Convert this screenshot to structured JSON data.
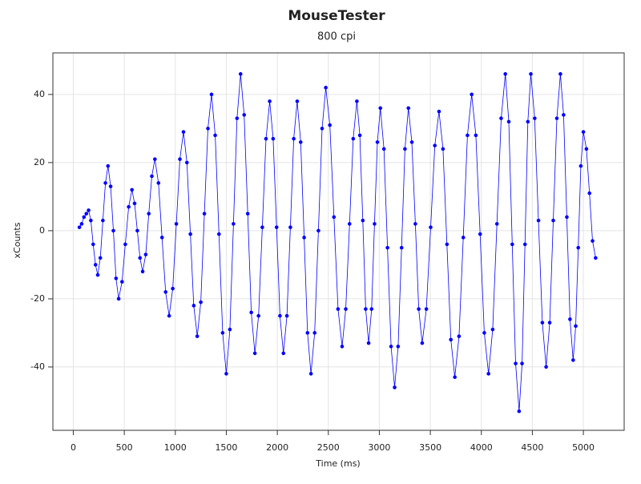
{
  "chart_data": {
    "type": "line",
    "title": "MouseTester",
    "subtitle": "800 cpi",
    "x_label": "Time (ms)",
    "y_label": "xCounts",
    "xlim": [
      -200,
      5400
    ],
    "ylim": [
      -58.6,
      52.2
    ],
    "xticks": [
      0,
      500,
      1000,
      1500,
      2000,
      2500,
      3000,
      3500,
      4000,
      4500,
      5000
    ],
    "yticks": [
      -40,
      -20,
      0,
      20,
      40
    ],
    "grid": true,
    "markers": true,
    "series": [
      {
        "name": "xCounts",
        "color": "#0000ff",
        "x": [
          60,
          82,
          105,
          128,
          150,
          172,
          195,
          218,
          240,
          265,
          290,
          315,
          340,
          366,
          393,
          419,
          445,
          478,
          510,
          543,
          575,
          601,
          628,
          654,
          680,
          710,
          740,
          770,
          800,
          835,
          870,
          905,
          940,
          975,
          1010,
          1045,
          1080,
          1114,
          1148,
          1181,
          1215,
          1250,
          1285,
          1320,
          1355,
          1391,
          1428,
          1464,
          1500,
          1535,
          1570,
          1605,
          1640,
          1675,
          1710,
          1745,
          1780,
          1816,
          1853,
          1889,
          1925,
          1959,
          1993,
          2026,
          2060,
          2094,
          2128,
          2161,
          2195,
          2229,
          2263,
          2296,
          2330,
          2366,
          2403,
          2439,
          2475,
          2515,
          2555,
          2595,
          2635,
          2671,
          2708,
          2744,
          2780,
          2809,
          2838,
          2866,
          2895,
          2924,
          2953,
          2981,
          3010,
          3045,
          3080,
          3115,
          3150,
          3184,
          3218,
          3251,
          3285,
          3319,
          3353,
          3386,
          3420,
          3461,
          3503,
          3544,
          3585,
          3624,
          3663,
          3701,
          3740,
          3781,
          3823,
          3864,
          3905,
          3946,
          3988,
          4029,
          4070,
          4111,
          4153,
          4194,
          4235,
          4269,
          4303,
          4336,
          4370,
          4399,
          4428,
          4456,
          4485,
          4523,
          4560,
          4598,
          4635,
          4670,
          4705,
          4740,
          4775,
          4806,
          4838,
          4869,
          4900,
          4925,
          4950,
          4975,
          5000,
          5030,
          5060,
          5090,
          5120
        ],
        "values": [
          1,
          2,
          4,
          5,
          6,
          3,
          -4,
          -10,
          -13,
          -8,
          3,
          14,
          19,
          13,
          0,
          -14,
          -20,
          -15,
          -4,
          7,
          12,
          8,
          0,
          -8,
          -12,
          -7,
          5,
          16,
          21,
          14,
          -2,
          -18,
          -25,
          -17,
          2,
          21,
          29,
          20,
          -1,
          -22,
          -31,
          -21,
          5,
          30,
          40,
          28,
          -1,
          -30,
          -42,
          -29,
          2,
          33,
          46,
          34,
          5,
          -24,
          -36,
          -25,
          1,
          27,
          38,
          27,
          1,
          -25,
          -36,
          -25,
          1,
          27,
          38,
          26,
          -2,
          -30,
          -42,
          -30,
          0,
          30,
          42,
          31,
          4,
          -23,
          -34,
          -23,
          2,
          27,
          38,
          28,
          3,
          -23,
          -33,
          -23,
          2,
          26,
          36,
          24,
          -5,
          -34,
          -46,
          -34,
          -5,
          24,
          36,
          26,
          2,
          -23,
          -33,
          -23,
          1,
          25,
          35,
          24,
          -4,
          -32,
          -43,
          -31,
          -2,
          28,
          40,
          28,
          -1,
          -30,
          -42,
          -29,
          2,
          33,
          46,
          32,
          -4,
          -39,
          -53,
          -39,
          -4,
          32,
          46,
          33,
          3,
          -27,
          -40,
          -27,
          3,
          33,
          46,
          34,
          4,
          -26,
          -38,
          -28,
          -5,
          19,
          29,
          24,
          11,
          -3,
          -8
        ]
      }
    ]
  }
}
